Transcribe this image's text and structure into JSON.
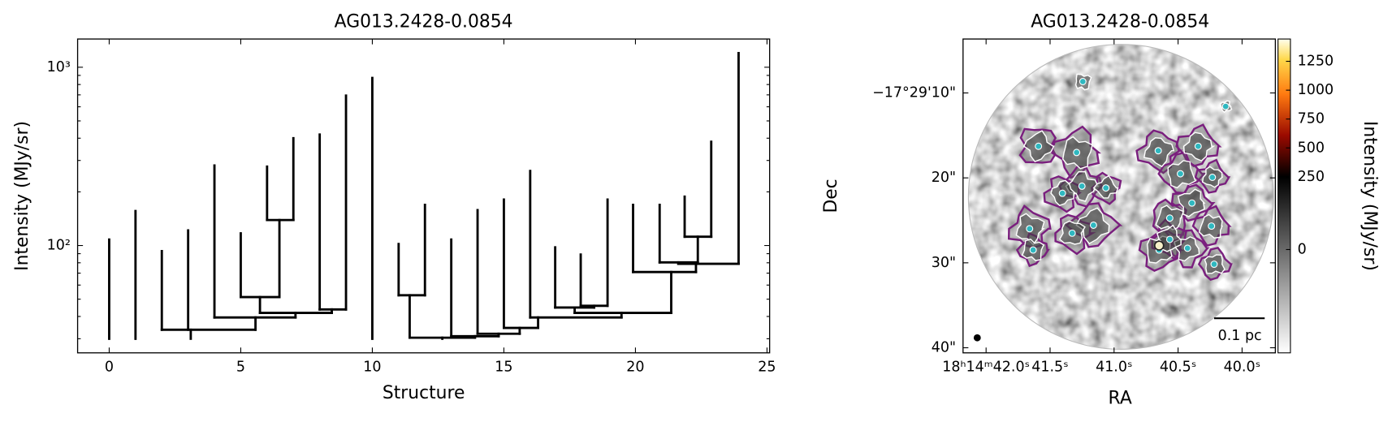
{
  "chart_data": [
    {
      "type": "dendrogram",
      "title": "AG013.2428-0.0854",
      "xlabel": "Structure",
      "ylabel": "Intensity (MJy/sr)",
      "xlim": [
        -1.2,
        25.1
      ],
      "ylim": [
        25,
        1440
      ],
      "yscale": "log",
      "xticks": [
        0,
        5,
        10,
        15,
        20,
        25
      ],
      "yticks": [
        {
          "value": 100,
          "label": "10²"
        },
        {
          "value": 1000,
          "label": "10³"
        }
      ],
      "yminorticks": [
        30,
        40,
        50,
        60,
        70,
        80,
        90,
        200,
        300,
        400,
        500,
        600,
        700,
        800,
        900
      ],
      "color": "#000000",
      "verticals": [
        [
          0,
          30,
          108
        ],
        [
          1,
          30,
          156
        ],
        [
          10,
          30,
          871
        ],
        [
          3.1,
          30,
          33.7
        ],
        [
          2,
          33.7,
          93
        ],
        [
          3,
          33.7,
          121.5
        ],
        [
          5.56,
          33.7,
          39.5
        ],
        [
          4,
          39.5,
          281
        ],
        [
          7.08,
          39.5,
          41.9
        ],
        [
          5.73,
          41.9,
          51.4
        ],
        [
          5,
          51.4,
          117
        ],
        [
          6.47,
          51.4,
          139
        ],
        [
          6,
          139,
          277
        ],
        [
          7,
          139,
          400
        ],
        [
          8.46,
          41.9,
          43.8
        ],
        [
          8,
          43.8,
          419
        ],
        [
          9,
          43.8,
          693
        ],
        [
          12.66,
          30,
          30.4
        ],
        [
          11.42,
          30.4,
          52.6
        ],
        [
          11,
          52.6,
          102
        ],
        [
          12,
          52.6,
          169
        ],
        [
          13.9,
          30.4,
          31
        ],
        [
          13,
          31,
          108
        ],
        [
          14.8,
          31,
          32
        ],
        [
          14,
          32,
          158
        ],
        [
          15.6,
          32,
          34.5
        ],
        [
          15,
          34.5,
          181
        ],
        [
          16.3,
          34.5,
          39.5
        ],
        [
          16,
          39.5,
          262
        ],
        [
          19.47,
          39.5,
          41.9
        ],
        [
          17.69,
          41.9,
          44.9
        ],
        [
          16.95,
          44.9,
          97.6
        ],
        [
          18.43,
          44.9,
          45.9
        ],
        [
          17.92,
          45.9,
          89
        ],
        [
          18.94,
          45.9,
          181
        ],
        [
          21.36,
          41.9,
          71
        ],
        [
          19.91,
          71,
          169
        ],
        [
          22.3,
          71,
          79
        ],
        [
          23.92,
          79,
          1201
        ],
        [
          21.63,
          79,
          80.4
        ],
        [
          20.92,
          80.4,
          169
        ],
        [
          22.37,
          80.4,
          112
        ],
        [
          21.87,
          112,
          188
        ],
        [
          22.88,
          112,
          382
        ]
      ],
      "horizontals": [
        [
          2,
          5.56,
          33.7
        ],
        [
          4,
          7.08,
          39.5
        ],
        [
          5.73,
          8.46,
          41.9
        ],
        [
          5,
          6.47,
          51.4
        ],
        [
          6,
          7,
          139
        ],
        [
          8,
          9,
          43.8
        ],
        [
          11.42,
          13.9,
          30.4
        ],
        [
          11,
          12,
          52.6
        ],
        [
          13,
          14.8,
          31
        ],
        [
          14,
          15.6,
          32
        ],
        [
          15,
          16.3,
          34.5
        ],
        [
          16,
          19.47,
          39.5
        ],
        [
          17.69,
          21.36,
          41.9
        ],
        [
          16.95,
          18.43,
          44.9
        ],
        [
          17.92,
          18.94,
          45.9
        ],
        [
          19.91,
          22.3,
          71
        ],
        [
          21.63,
          23.92,
          79
        ],
        [
          20.92,
          22.37,
          80.4
        ],
        [
          21.87,
          22.88,
          112
        ]
      ]
    },
    {
      "type": "image",
      "title": "AG013.2428-0.0854",
      "xlabel": "RA",
      "ylabel": "Dec",
      "xlim": [
        42.18,
        39.74
      ],
      "ylim": [
        40.6,
        3.65
      ],
      "xticks": [
        {
          "value": 42.0,
          "label": "18ʰ14ᵐ42.0ˢ"
        },
        {
          "value": 41.5,
          "label": "41.5ˢ"
        },
        {
          "value": 41.0,
          "label": "41.0ˢ"
        },
        {
          "value": 40.5,
          "label": "40.5ˢ"
        },
        {
          "value": 40.0,
          "label": "40.0ˢ"
        }
      ],
      "yticks": [
        {
          "value": 10,
          "label": "−17°29'10\""
        },
        {
          "value": 20,
          "label": "20\""
        },
        {
          "value": 30,
          "label": "30\""
        },
        {
          "value": 40,
          "label": "40\""
        }
      ],
      "colorbar": {
        "label": "Intensity (MJy/sr)",
        "lim": [
          -355,
          1443
        ],
        "break": 250,
        "ticks": [
          0,
          250,
          500,
          750,
          1000,
          1250
        ]
      },
      "scalebar": "0.1 pc"
    }
  ]
}
